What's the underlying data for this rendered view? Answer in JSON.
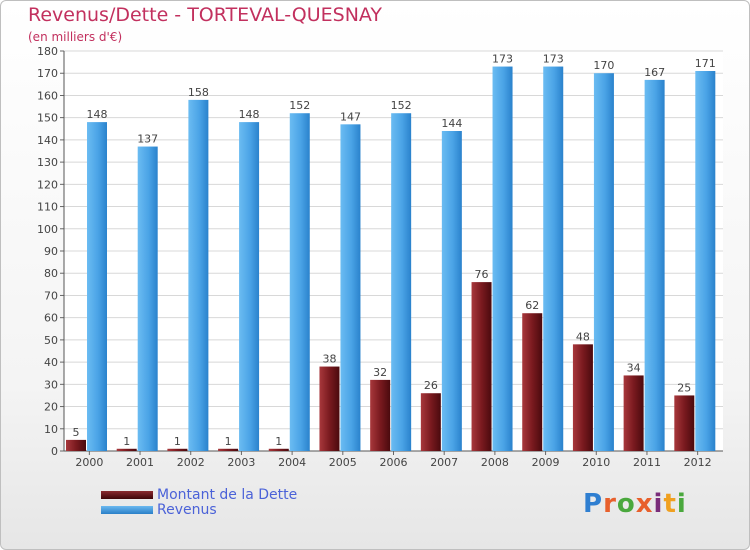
{
  "chart_data": {
    "type": "bar",
    "title": "Revenus/Dette - TORTEVAL-QUESNAY",
    "subtitle": "(en milliers d'€)",
    "categories": [
      "2000",
      "2001",
      "2002",
      "2003",
      "2004",
      "2005",
      "2006",
      "2007",
      "2008",
      "2009",
      "2010",
      "2011",
      "2012"
    ],
    "series": [
      {
        "name": "Montant de la Dette",
        "color": "#7a1a1f",
        "values": [
          5,
          1,
          1,
          1,
          1,
          38,
          32,
          26,
          76,
          62,
          48,
          34,
          25
        ]
      },
      {
        "name": "Revenus",
        "color": "#3d9be0",
        "values": [
          148,
          137,
          158,
          148,
          152,
          147,
          152,
          144,
          173,
          173,
          170,
          167,
          171
        ]
      }
    ],
    "ylim": [
      0,
      180
    ],
    "yticks": [
      0,
      10,
      20,
      30,
      40,
      50,
      60,
      70,
      80,
      90,
      100,
      110,
      120,
      130,
      140,
      150,
      160,
      170,
      180
    ],
    "grid": true,
    "legend_position": "bottom-left"
  },
  "brand": {
    "name": "Proxiti",
    "letter_colors": [
      "#2f7fd1",
      "#e8602c",
      "#4aa83d",
      "#e8602c",
      "#7a2d7a",
      "#f0a020",
      "#4aa83d"
    ]
  }
}
